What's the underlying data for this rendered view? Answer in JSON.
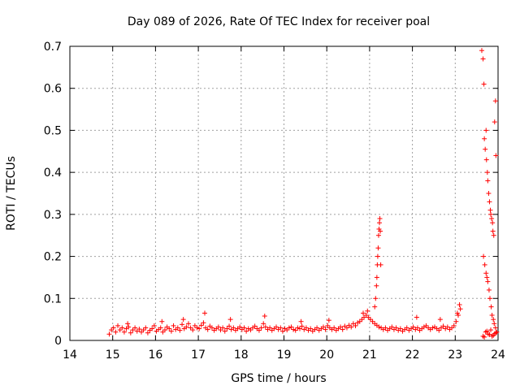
{
  "chart_data": {
    "type": "scatter",
    "title": "Day 089 of 2026, Rate Of TEC Index for receiver poal",
    "xlabel": "GPS time / hours",
    "ylabel": "ROTI / TECUs",
    "xlim": [
      14,
      24
    ],
    "ylim": [
      0,
      0.7
    ],
    "xticks": [
      "14",
      "15",
      "16",
      "17",
      "18",
      "19",
      "20",
      "21",
      "22",
      "23",
      "24"
    ],
    "yticks": [
      "0",
      "0.1",
      "0.2",
      "0.3",
      "0.4",
      "0.5",
      "0.6",
      "0.7"
    ],
    "grid": true,
    "marker": "+",
    "marker_color": "#ff0000",
    "series": [
      {
        "x": [
          14.92,
          14.97,
          15.02,
          15.07,
          15.12,
          15.17,
          15.22,
          15.27,
          15.32,
          15.37,
          15.42,
          15.47,
          15.52,
          15.57,
          15.62,
          15.67,
          15.72,
          15.77,
          15.82,
          15.87,
          15.92,
          15.97,
          16.02,
          16.07,
          16.12,
          16.17,
          16.22,
          16.27,
          16.32,
          16.37,
          16.42,
          16.47,
          16.52,
          16.57,
          16.62,
          16.67,
          16.72,
          16.77,
          16.82,
          16.87,
          16.92,
          16.97,
          17.02,
          17.07,
          17.12,
          17.17,
          17.22,
          17.27,
          17.32,
          17.37,
          17.42,
          17.47,
          17.52,
          17.57,
          17.62,
          17.67,
          17.72,
          17.77,
          17.82,
          17.87,
          17.92,
          17.97,
          18.02,
          18.07,
          18.12,
          18.17,
          18.22,
          18.27,
          18.32,
          18.37,
          18.42,
          18.47,
          18.52,
          18.57,
          18.62,
          18.67,
          18.72,
          18.77,
          18.82,
          18.87,
          18.92,
          18.97,
          19.02,
          19.07,
          19.12,
          19.17,
          19.22,
          19.27,
          19.32,
          19.37,
          19.42,
          19.47,
          19.52,
          19.57,
          19.62,
          19.67,
          19.72,
          19.77,
          19.82,
          19.87,
          19.92,
          19.97,
          20.02,
          20.07,
          20.12,
          20.17,
          20.22,
          20.27,
          20.32,
          20.37,
          20.42,
          20.47,
          20.52,
          20.57,
          20.62,
          20.67,
          20.72,
          20.77,
          20.82,
          20.87,
          20.92,
          20.97,
          21.02,
          21.07,
          21.12,
          21.17,
          21.22,
          21.27,
          21.32,
          21.37,
          21.42,
          21.47,
          21.52,
          21.57,
          21.62,
          21.67,
          21.72,
          21.77,
          21.82,
          21.87,
          21.92,
          21.97,
          22.02,
          22.07,
          22.12,
          22.17,
          22.22,
          22.27,
          22.32,
          22.37,
          22.42,
          22.47,
          22.52,
          22.57,
          22.62,
          22.67,
          22.72,
          22.77,
          22.82,
          22.87,
          22.92,
          22.97,
          23.02,
          23.07,
          23.12,
          21.12,
          21.14,
          21.16,
          21.17,
          21.18,
          21.19,
          21.2,
          21.21,
          21.22,
          21.23,
          21.24,
          21.25,
          21.26,
          15.35,
          16.15,
          16.65,
          17.15,
          17.75,
          18.55,
          19.4,
          20.05,
          20.85,
          20.95,
          22.1,
          22.65,
          23.05,
          23.1,
          23.62,
          23.65,
          23.67,
          23.68,
          23.7,
          23.72,
          23.73,
          23.75,
          23.76,
          23.78,
          23.8,
          23.82,
          23.83,
          23.85,
          23.87,
          23.88,
          23.9,
          23.92,
          23.94,
          23.95,
          23.66,
          23.69,
          23.72,
          23.74,
          23.76,
          23.79,
          23.81,
          23.84,
          23.86,
          23.89,
          23.91,
          23.94,
          23.65,
          23.71,
          23.77,
          23.83,
          23.89,
          23.95,
          23.68,
          23.74,
          23.8,
          23.86,
          23.92,
          23.97
        ],
        "y": [
          0.015,
          0.025,
          0.03,
          0.02,
          0.035,
          0.025,
          0.03,
          0.02,
          0.028,
          0.032,
          0.018,
          0.025,
          0.03,
          0.022,
          0.027,
          0.02,
          0.025,
          0.03,
          0.018,
          0.024,
          0.028,
          0.035,
          0.022,
          0.026,
          0.03,
          0.02,
          0.025,
          0.032,
          0.028,
          0.022,
          0.035,
          0.026,
          0.03,
          0.024,
          0.038,
          0.028,
          0.032,
          0.04,
          0.03,
          0.025,
          0.035,
          0.03,
          0.028,
          0.036,
          0.042,
          0.03,
          0.026,
          0.034,
          0.03,
          0.024,
          0.028,
          0.032,
          0.025,
          0.03,
          0.022,
          0.028,
          0.034,
          0.026,
          0.03,
          0.024,
          0.028,
          0.032,
          0.026,
          0.03,
          0.022,
          0.028,
          0.025,
          0.03,
          0.034,
          0.028,
          0.024,
          0.03,
          0.04,
          0.032,
          0.026,
          0.03,
          0.024,
          0.028,
          0.032,
          0.026,
          0.03,
          0.022,
          0.028,
          0.025,
          0.03,
          0.032,
          0.026,
          0.024,
          0.03,
          0.028,
          0.034,
          0.026,
          0.03,
          0.024,
          0.028,
          0.022,
          0.026,
          0.03,
          0.024,
          0.028,
          0.032,
          0.026,
          0.035,
          0.03,
          0.026,
          0.03,
          0.024,
          0.028,
          0.032,
          0.026,
          0.034,
          0.03,
          0.036,
          0.032,
          0.04,
          0.035,
          0.042,
          0.045,
          0.05,
          0.055,
          0.06,
          0.055,
          0.05,
          0.045,
          0.04,
          0.036,
          0.032,
          0.03,
          0.026,
          0.03,
          0.024,
          0.028,
          0.032,
          0.026,
          0.03,
          0.024,
          0.028,
          0.022,
          0.026,
          0.03,
          0.024,
          0.028,
          0.032,
          0.026,
          0.03,
          0.024,
          0.028,
          0.032,
          0.035,
          0.03,
          0.026,
          0.03,
          0.032,
          0.028,
          0.024,
          0.03,
          0.034,
          0.028,
          0.032,
          0.026,
          0.03,
          0.035,
          0.045,
          0.06,
          0.075,
          0.08,
          0.1,
          0.13,
          0.15,
          0.18,
          0.2,
          0.22,
          0.25,
          0.265,
          0.28,
          0.29,
          0.26,
          0.18,
          0.04,
          0.045,
          0.05,
          0.065,
          0.05,
          0.058,
          0.045,
          0.048,
          0.065,
          0.07,
          0.055,
          0.05,
          0.065,
          0.085,
          0.69,
          0.67,
          0.61,
          0.48,
          0.455,
          0.5,
          0.43,
          0.4,
          0.38,
          0.35,
          0.33,
          0.31,
          0.3,
          0.29,
          0.28,
          0.26,
          0.25,
          0.52,
          0.57,
          0.44,
          0.2,
          0.18,
          0.16,
          0.15,
          0.14,
          0.12,
          0.1,
          0.08,
          0.06,
          0.05,
          0.04,
          0.03,
          0.01,
          0.02,
          0.015,
          0.025,
          0.012,
          0.018,
          0.008,
          0.022,
          0.014,
          0.01,
          0.016,
          0.02
        ]
      }
    ]
  }
}
